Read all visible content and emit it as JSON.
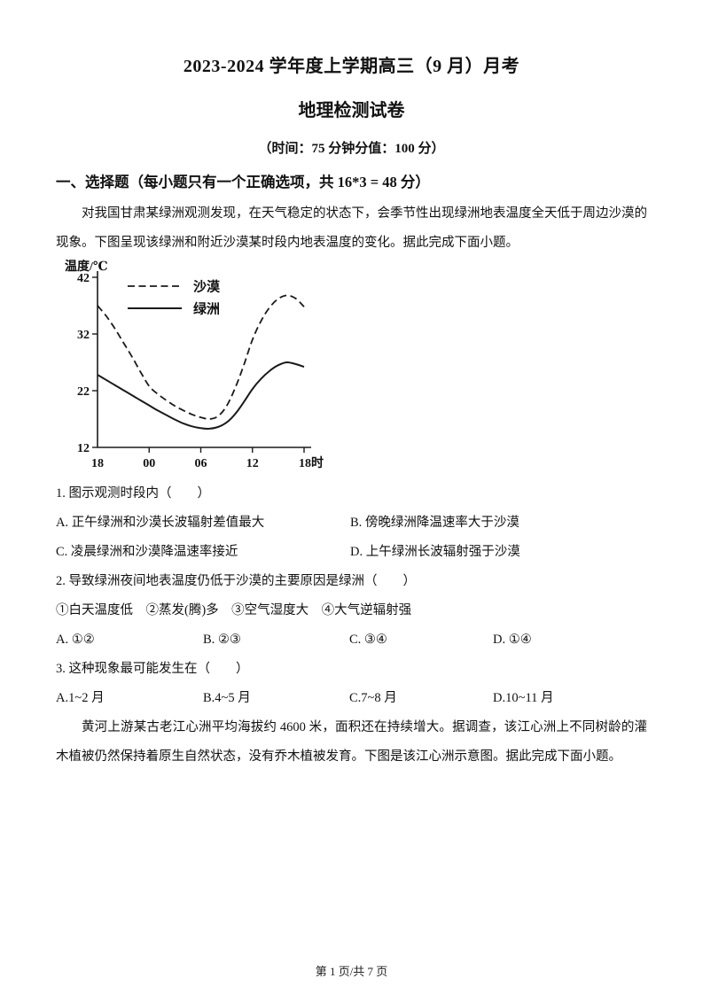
{
  "page": {
    "title": "2023-2024 学年度上学期高三（9 月）月考",
    "subtitle": "地理检测试卷",
    "meta": "（时间：75 分钟分值：100 分）",
    "section_heading": "一、选择题（每小题只有一个正确选项，共 16*3 = 48 分）",
    "intro1": "对我国甘肃某绿洲观测发现，在天气稳定的状态下，会季节性出现绿洲地表温度全天低于周边沙漠的现象。下图呈现该绿洲和附近沙漠某时段内地表温度的变化。据此完成下面小题。",
    "intro2": "黄河上游某古老江心洲平均海拔约 4600 米，面积还在持续增大。据调查，该江心洲上不同树龄的灌木植被仍然保持着原生自然状态，没有乔木植被发育。下图是该江心洲示意图。据此完成下面小题。",
    "footer": "第 1 页/共 7 页"
  },
  "questions": [
    {
      "stem": "1. 图示观测时段内（　　）",
      "options": [
        "A. 正午绿洲和沙漠长波辐射差值最大",
        "B. 傍晚绿洲降温速率大于沙漠",
        "C. 凌晨绿洲和沙漠降温速率接近",
        "D. 上午绿洲长波辐射强于沙漠"
      ]
    },
    {
      "stem": "2. 导致绿洲夜间地表温度仍低于沙漠的主要原因是绿洲（　　）",
      "sub_options": "①白天温度低　②蒸发(腾)多　③空气湿度大　④大气逆辐射强",
      "options": [
        "A. ①②",
        "B. ②③",
        "C. ③④",
        "D. ①④"
      ]
    },
    {
      "stem": "3. 这种现象最可能发生在（　　）",
      "options": [
        "A.1~2 月",
        "B.4~5 月",
        "C.7~8 月",
        "D.10~11 月"
      ]
    }
  ],
  "chart_data": {
    "type": "line",
    "title": "",
    "ylabel": "温度/℃",
    "xlabel": "时",
    "ylim": [
      12,
      42
    ],
    "xlim": [
      0,
      24
    ],
    "yticks": [
      12,
      22,
      32,
      42
    ],
    "x_tick_hours": [
      0,
      6,
      12,
      18,
      24
    ],
    "x_tick_labels": [
      "18",
      "00",
      "06",
      "12",
      "18时"
    ],
    "grid": false,
    "legend_position": "top-left-inside",
    "x_hours": [
      0,
      1,
      2,
      3,
      4,
      5,
      6,
      7,
      8,
      9,
      10,
      11,
      12,
      13,
      14,
      15,
      16,
      17,
      18,
      19,
      20,
      21,
      22,
      23,
      24
    ],
    "series": [
      {
        "name": "沙漠",
        "style": "dashed",
        "values": [
          37.0,
          35.2,
          33.0,
          30.5,
          28.0,
          25.3,
          22.8,
          21.4,
          20.3,
          19.3,
          18.5,
          17.8,
          17.3,
          17.0,
          17.5,
          19.3,
          22.5,
          26.5,
          31.0,
          34.3,
          36.7,
          38.2,
          38.8,
          38.3,
          36.8
        ]
      },
      {
        "name": "绿洲",
        "style": "solid",
        "values": [
          24.8,
          23.9,
          23.0,
          22.1,
          21.2,
          20.3,
          19.4,
          18.5,
          17.7,
          16.9,
          16.2,
          15.7,
          15.4,
          15.3,
          15.6,
          16.4,
          17.9,
          20.0,
          22.3,
          24.1,
          25.5,
          26.5,
          27.0,
          26.7,
          26.2
        ]
      }
    ]
  }
}
